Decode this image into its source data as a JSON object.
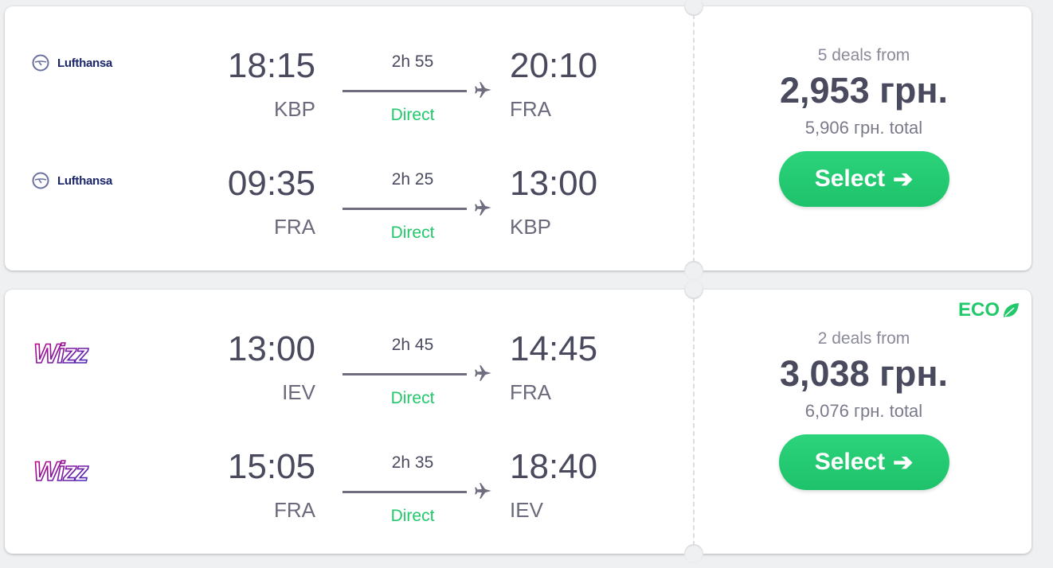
{
  "colors": {
    "accent": "#22c96b",
    "text": "#4a4a5e"
  },
  "results": [
    {
      "deals": "5 deals from",
      "price": "2,953 грн.",
      "total": "5,906 грн. total",
      "select_label": "Select",
      "eco": null,
      "legs": [
        {
          "airline": "Lufthansa",
          "dep_time": "18:15",
          "dep_airport": "KBP",
          "duration": "2h 55",
          "stops": "Direct",
          "arr_time": "20:10",
          "arr_airport": "FRA"
        },
        {
          "airline": "Lufthansa",
          "dep_time": "09:35",
          "dep_airport": "FRA",
          "duration": "2h 25",
          "stops": "Direct",
          "arr_time": "13:00",
          "arr_airport": "KBP"
        }
      ]
    },
    {
      "deals": "2 deals from",
      "price": "3,038 грн.",
      "total": "6,076 грн. total",
      "select_label": "Select",
      "eco": "ECO",
      "legs": [
        {
          "airline": "Wizz",
          "dep_time": "13:00",
          "dep_airport": "IEV",
          "duration": "2h 45",
          "stops": "Direct",
          "arr_time": "14:45",
          "arr_airport": "FRA"
        },
        {
          "airline": "Wizz",
          "dep_time": "15:05",
          "dep_airport": "FRA",
          "duration": "2h 35",
          "stops": "Direct",
          "arr_time": "18:40",
          "arr_airport": "IEV"
        }
      ]
    }
  ]
}
